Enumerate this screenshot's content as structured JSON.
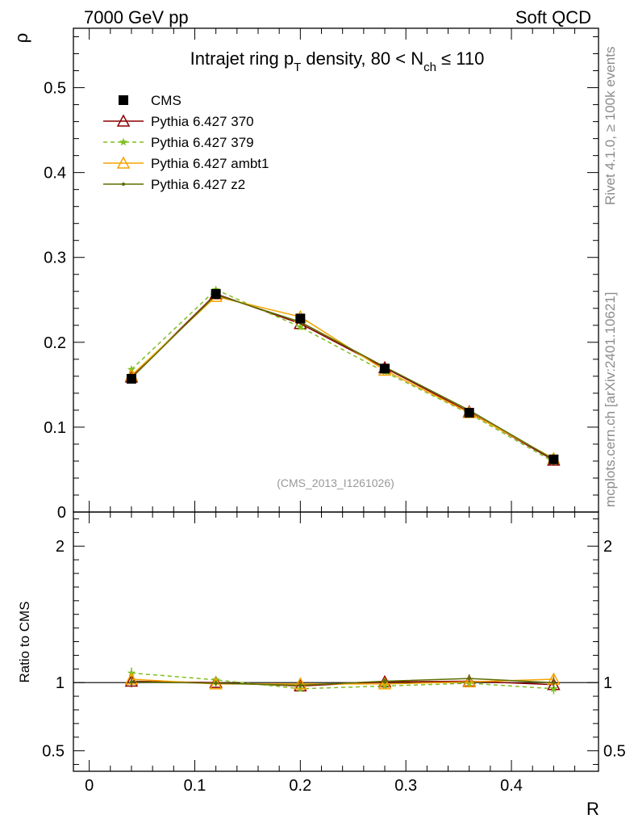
{
  "header": {
    "energy_label": "7000 GeV pp",
    "category_label": "Soft QCD"
  },
  "side": {
    "rivet_note": "Rivet 4.1.0, ≥ 100k events",
    "mcplots_note": "mcplots.cern.ch [arXiv:2401.10621]"
  },
  "chart_data": [
    {
      "type": "line",
      "title_parts": {
        "prefix": "Intrajet ring p",
        "sub1": "T",
        "middle": " density, 80 < N",
        "sub2": "ch",
        "suffix": " ≤ 110"
      },
      "ylabel": "ρ",
      "xlabel": "R",
      "analysis_tag": "(CMS_2013_I1261026)",
      "xlim": [
        -0.015,
        0.4825
      ],
      "ylim": [
        0,
        0.57
      ],
      "xticks": [
        0,
        0.1,
        0.2,
        0.3,
        0.4
      ],
      "xtick_labels": [
        "0",
        "0.1",
        "0.2",
        "0.3",
        "0.4"
      ],
      "yticks": [
        0,
        0.1,
        0.2,
        0.3,
        0.4,
        0.5
      ],
      "ytick_labels": [
        "0",
        "0.1",
        "0.2",
        "0.3",
        "0.4",
        "0.5"
      ],
      "x": [
        0.04,
        0.12,
        0.2,
        0.28,
        0.36,
        0.44
      ],
      "series": [
        {
          "name": "CMS",
          "color": "#000000",
          "marker": "square",
          "dash": false,
          "values": [
            0.157,
            0.257,
            0.228,
            0.169,
            0.117,
            0.062
          ],
          "errors": [
            0.005,
            0.006,
            0.005,
            0.004,
            0.003,
            0.002
          ]
        },
        {
          "name": "Pythia 6.427 370",
          "color": "#8b0000",
          "marker": "triangle-open",
          "dash": false,
          "values": [
            0.159,
            0.257,
            0.222,
            0.17,
            0.118,
            0.061
          ],
          "errors": [
            0.003,
            0.003,
            0.003,
            0.002,
            0.002,
            0.001
          ]
        },
        {
          "name": "Pythia 6.427 379",
          "color": "#7fbf1f",
          "marker": "star",
          "dash": true,
          "values": [
            0.168,
            0.262,
            0.218,
            0.165,
            0.116,
            0.059
          ],
          "errors": [
            0.003,
            0.003,
            0.003,
            0.002,
            0.002,
            0.001
          ]
        },
        {
          "name": "Pythia 6.427 ambt1",
          "color": "#f5a300",
          "marker": "triangle-open",
          "dash": false,
          "values": [
            0.161,
            0.254,
            0.23,
            0.167,
            0.117,
            0.063
          ],
          "errors": [
            0.003,
            0.003,
            0.003,
            0.002,
            0.002,
            0.001
          ]
        },
        {
          "name": "Pythia 6.427 z2",
          "color": "#5a6e00",
          "marker": "dot",
          "dash": false,
          "values": [
            0.158,
            0.256,
            0.224,
            0.171,
            0.12,
            0.062
          ],
          "errors": [
            0.003,
            0.003,
            0.003,
            0.002,
            0.002,
            0.001
          ]
        }
      ]
    },
    {
      "type": "line",
      "ylabel": "Ratio to CMS",
      "ylim": [
        0.35,
        2.25
      ],
      "yticks": [
        0.5,
        1,
        2
      ],
      "ytick_labels": [
        "0.5",
        "1",
        "2"
      ],
      "reference": 1,
      "x": [
        0.04,
        0.12,
        0.2,
        0.28,
        0.36,
        0.44
      ],
      "series": [
        {
          "name": "Pythia 6.427 370",
          "color": "#8b0000",
          "marker": "triangle-open",
          "dash": false,
          "values": [
            1.01,
            1.0,
            0.975,
            1.005,
            1.01,
            0.985
          ],
          "errors": [
            0.04,
            0.02,
            0.02,
            0.02,
            0.03,
            0.04
          ]
        },
        {
          "name": "Pythia 6.427 379",
          "color": "#7fbf1f",
          "marker": "star",
          "dash": true,
          "values": [
            1.07,
            1.02,
            0.955,
            0.975,
            0.995,
            0.955
          ],
          "errors": [
            0.04,
            0.02,
            0.02,
            0.02,
            0.03,
            0.04
          ]
        },
        {
          "name": "Pythia 6.427 ambt1",
          "color": "#f5a300",
          "marker": "triangle-open",
          "dash": false,
          "values": [
            1.025,
            0.99,
            0.99,
            0.99,
            1.005,
            1.025
          ],
          "errors": [
            0.04,
            0.02,
            0.02,
            0.02,
            0.03,
            0.04
          ]
        },
        {
          "name": "Pythia 6.427 z2",
          "color": "#5a6e00",
          "marker": "dot",
          "dash": false,
          "values": [
            1.005,
            0.995,
            0.98,
            1.01,
            1.03,
            1.0
          ],
          "errors": [
            0.04,
            0.02,
            0.02,
            0.02,
            0.03,
            0.04
          ]
        }
      ]
    }
  ]
}
